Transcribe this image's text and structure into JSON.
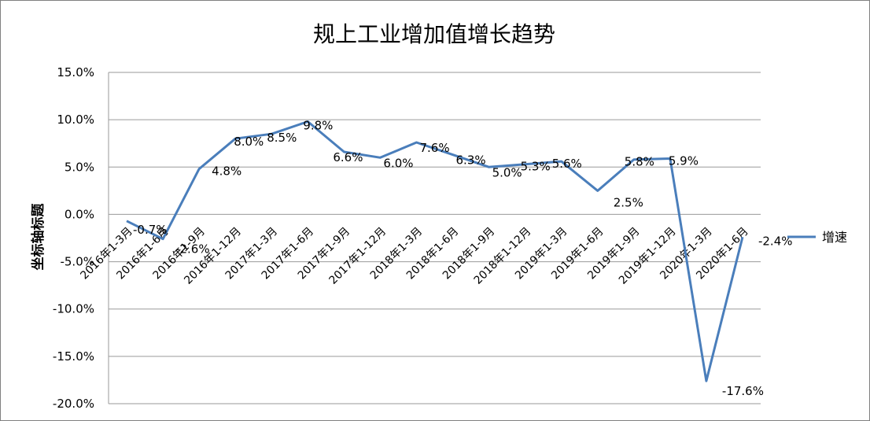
{
  "chart_data": {
    "type": "line",
    "title": "规上工业增加值增长趋势",
    "ylabel": "坐标轴标题",
    "xlabel": "",
    "ylim": [
      -0.2,
      0.15
    ],
    "yticks": [
      "15.0%",
      "10.0%",
      "5.0%",
      "0.0%",
      "-5.0%",
      "-10.0%",
      "-15.0%",
      "-20.0%"
    ],
    "grid": true,
    "legend_position": "right",
    "categories": [
      "2016年1-3月",
      "2016年1-6月",
      "2016年1-9月",
      "2016年1-12月",
      "2017年1-3月",
      "2017年1-6月",
      "2017年1-9月",
      "2017年1-12月",
      "2018年1-3月",
      "2018年1-6月",
      "2018年1-9月",
      "2018年1-12月",
      "2019年1-3月",
      "2019年1-6月",
      "2019年1-9月",
      "2019年1-12月",
      "2020年1-3月",
      "2020年1-6月"
    ],
    "series": [
      {
        "name": "增速",
        "color": "#4a7ebb",
        "values": [
          -0.007,
          -0.026,
          0.048,
          0.08,
          0.085,
          0.098,
          0.066,
          0.06,
          0.076,
          0.063,
          0.05,
          0.053,
          0.056,
          0.025,
          0.058,
          0.059,
          -0.176,
          -0.024
        ],
        "labels": [
          "-0.7%",
          "-2.6%",
          "4.8%",
          "8.0%",
          "8.5%",
          "9.8%",
          "6.6%",
          "6.0%",
          "7.6%",
          "6.3%",
          "5.0%",
          "5.3%",
          "5.6%",
          "2.5%",
          "5.8%",
          "5.9%",
          "-17.6%",
          "-2.4%"
        ]
      }
    ]
  }
}
